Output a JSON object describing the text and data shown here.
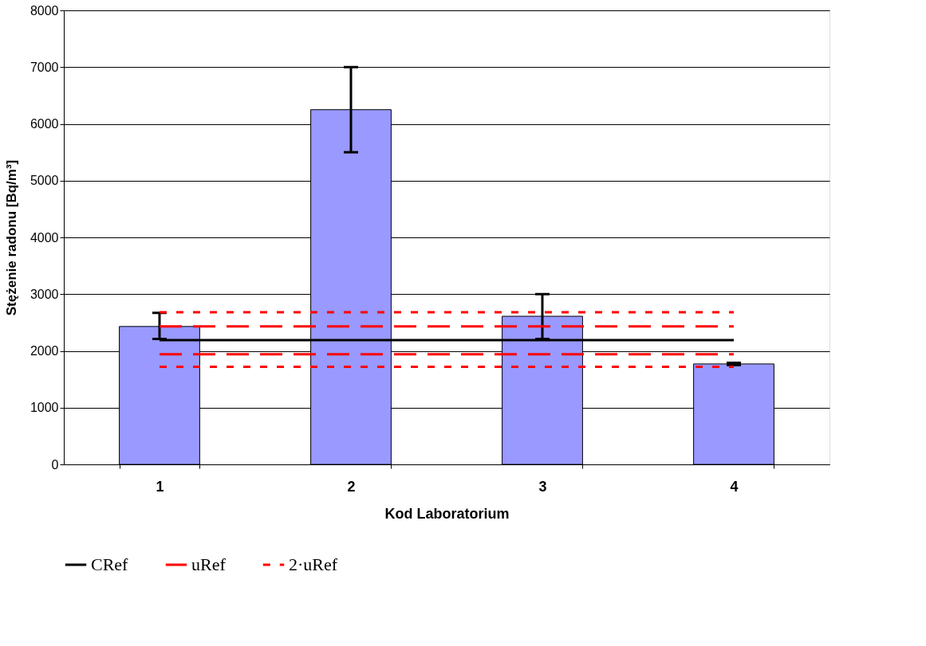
{
  "chart_data": {
    "type": "bar",
    "xlabel": "Kod Laboratorium",
    "ylabel": "Stężenie radonu [Bq/m³]",
    "categories": [
      "1",
      "2",
      "3",
      "4"
    ],
    "series": [
      {
        "color": "#9999ff",
        "values": [
          2430,
          6250,
          2610,
          1770
        ],
        "errors": [
          [
            2210,
            2670
          ],
          [
            5500,
            7000
          ],
          [
            2210,
            3000
          ],
          [
            1750,
            1790
          ]
        ]
      },
      {
        "type": "line",
        "name": "CRef",
        "color": "#000000",
        "line_style": "solid",
        "values": [
          2190,
          2190,
          2190,
          2190
        ]
      },
      {
        "type": "line",
        "name": "uRef",
        "color": "#ff0000",
        "line_style": "dashed",
        "values": [
          2430,
          2430,
          2430,
          2430
        ]
      },
      {
        "type": "line",
        "color": "#ff0000",
        "line_style": "dashed",
        "values": [
          1940,
          1940,
          1940,
          1940
        ]
      },
      {
        "type": "line",
        "name": "2·uRef",
        "color": "#ff0000",
        "line_style": "dotted",
        "values": [
          2680,
          2680,
          2680,
          2680
        ]
      },
      {
        "type": "line",
        "color": "#ff0000",
        "line_style": "dotted",
        "values": [
          1720,
          1720,
          1720,
          1720
        ]
      }
    ],
    "ylim": [
      0,
      8000
    ],
    "yticks": [
      0,
      1000,
      2000,
      3000,
      4000,
      5000,
      6000,
      7000,
      8000
    ],
    "grid": "y",
    "legend": "bottom",
    "marker": "none"
  }
}
